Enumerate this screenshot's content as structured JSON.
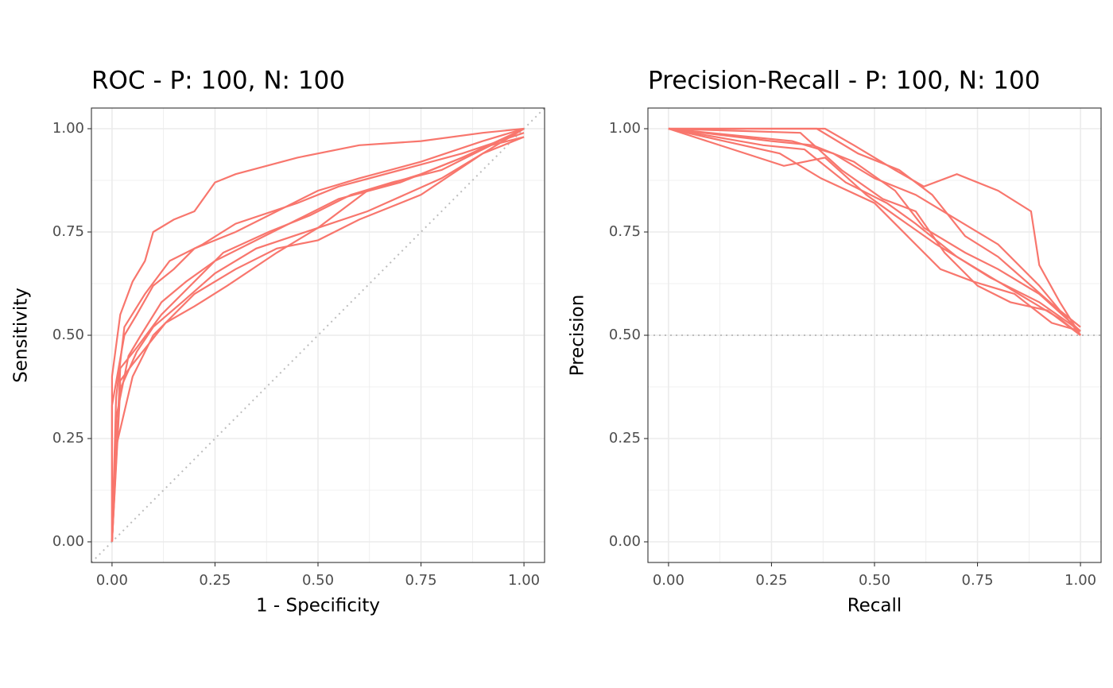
{
  "chart_data": [
    {
      "type": "line",
      "title": "ROC - P: 100, N: 100",
      "x_label": "1 - Specificity",
      "y_label": "Sensitivity",
      "xlim": [
        -0.05,
        1.05
      ],
      "ylim": [
        -0.05,
        1.05
      ],
      "xticks": [
        {
          "value": 0,
          "label": "0.00"
        },
        {
          "value": 0.25,
          "label": "0.25"
        },
        {
          "value": 0.5,
          "label": "0.50"
        },
        {
          "value": 0.75,
          "label": "0.75"
        },
        {
          "value": 1,
          "label": "1.00"
        }
      ],
      "yticks": [
        {
          "value": 0,
          "label": "0.00"
        },
        {
          "value": 0.25,
          "label": "0.25"
        },
        {
          "value": 0.5,
          "label": "0.50"
        },
        {
          "value": 0.75,
          "label": "0.75"
        },
        {
          "value": 1,
          "label": "1.00"
        }
      ],
      "grid": true,
      "minor_grid": true,
      "reference_line": {
        "slope": 1,
        "intercept": 0
      },
      "series": [
        {
          "color": "#f8766d",
          "x": [
            0,
            0,
            0.02,
            0.05,
            0.08,
            0.1,
            0.15,
            0.2,
            0.25,
            0.3,
            0.45,
            0.6,
            0.75,
            0.9,
            1
          ],
          "values": [
            0,
            0.4,
            0.55,
            0.63,
            0.68,
            0.75,
            0.78,
            0.8,
            0.87,
            0.89,
            0.93,
            0.96,
            0.97,
            0.99,
            1
          ]
        },
        {
          "color": "#f8766d",
          "x": [
            0,
            0,
            0.03,
            0.06,
            0.1,
            0.15,
            0.2,
            0.3,
            0.4,
            0.5,
            0.6,
            0.75,
            0.9,
            1
          ],
          "values": [
            0,
            0.33,
            0.5,
            0.55,
            0.62,
            0.66,
            0.71,
            0.75,
            0.8,
            0.85,
            0.88,
            0.92,
            0.97,
            1
          ]
        },
        {
          "color": "#f8766d",
          "x": [
            0,
            0.01,
            0.04,
            0.07,
            0.12,
            0.18,
            0.25,
            0.35,
            0.45,
            0.55,
            0.7,
            0.85,
            1
          ],
          "values": [
            0,
            0.3,
            0.45,
            0.5,
            0.58,
            0.63,
            0.68,
            0.73,
            0.78,
            0.83,
            0.87,
            0.93,
            1
          ]
        },
        {
          "color": "#f8766d",
          "x": [
            0,
            0.01,
            0.05,
            0.1,
            0.15,
            0.2,
            0.3,
            0.4,
            0.5,
            0.6,
            0.75,
            0.9,
            1
          ],
          "values": [
            0,
            0.23,
            0.4,
            0.5,
            0.55,
            0.6,
            0.66,
            0.71,
            0.73,
            0.78,
            0.84,
            0.94,
            0.98
          ]
        },
        {
          "color": "#f8766d",
          "x": [
            0,
            0.02,
            0.06,
            0.1,
            0.17,
            0.25,
            0.35,
            0.5,
            0.62,
            0.75,
            0.9,
            1
          ],
          "values": [
            0,
            0.37,
            0.46,
            0.52,
            0.58,
            0.65,
            0.71,
            0.76,
            0.85,
            0.89,
            0.95,
            1
          ]
        },
        {
          "color": "#f8766d",
          "x": [
            0,
            0.01,
            0.03,
            0.08,
            0.14,
            0.22,
            0.3,
            0.45,
            0.55,
            0.7,
            0.85,
            1
          ],
          "values": [
            0,
            0.35,
            0.52,
            0.6,
            0.68,
            0.72,
            0.77,
            0.82,
            0.86,
            0.9,
            0.94,
            0.99
          ]
        },
        {
          "color": "#f8766d",
          "x": [
            0,
            0.02,
            0.05,
            0.09,
            0.13,
            0.2,
            0.28,
            0.4,
            0.5,
            0.62,
            0.8,
            0.95,
            1
          ],
          "values": [
            0,
            0.39,
            0.43,
            0.48,
            0.53,
            0.57,
            0.62,
            0.7,
            0.76,
            0.8,
            0.88,
            0.97,
            1
          ]
        },
        {
          "color": "#f8766d",
          "x": [
            0,
            0.02,
            0.06,
            0.12,
            0.19,
            0.27,
            0.38,
            0.48,
            0.58,
            0.68,
            0.8,
            0.92,
            1
          ],
          "values": [
            0,
            0.42,
            0.47,
            0.55,
            0.62,
            0.7,
            0.75,
            0.79,
            0.84,
            0.87,
            0.9,
            0.96,
            0.98
          ]
        }
      ]
    },
    {
      "type": "line",
      "title": "Precision-Recall - P: 100, N: 100",
      "x_label": "Recall",
      "y_label": "Precision",
      "xlim": [
        -0.05,
        1.05
      ],
      "ylim": [
        -0.05,
        1.05
      ],
      "xticks": [
        {
          "value": 0,
          "label": "0.00"
        },
        {
          "value": 0.25,
          "label": "0.25"
        },
        {
          "value": 0.5,
          "label": "0.50"
        },
        {
          "value": 0.75,
          "label": "0.75"
        },
        {
          "value": 1,
          "label": "1.00"
        }
      ],
      "yticks": [
        {
          "value": 0,
          "label": "0.00"
        },
        {
          "value": 0.25,
          "label": "0.25"
        },
        {
          "value": 0.5,
          "label": "0.50"
        },
        {
          "value": 0.75,
          "label": "0.75"
        },
        {
          "value": 1,
          "label": "1.00"
        }
      ],
      "grid": true,
      "minor_grid": true,
      "reference_line": {
        "slope": 0,
        "intercept": 0.5
      },
      "series": [
        {
          "color": "#f8766d",
          "x": [
            0,
            0.38,
            0.45,
            0.55,
            0.62,
            0.7,
            0.8,
            0.88,
            0.9,
            0.95,
            1
          ],
          "values": [
            1,
            1,
            0.96,
            0.9,
            0.86,
            0.89,
            0.85,
            0.8,
            0.67,
            0.58,
            0.5
          ]
        },
        {
          "color": "#f8766d",
          "x": [
            0,
            0.3,
            0.4,
            0.5,
            0.6,
            0.7,
            0.8,
            0.9,
            0.95,
            1
          ],
          "values": [
            1,
            0.97,
            0.94,
            0.88,
            0.84,
            0.78,
            0.72,
            0.62,
            0.56,
            0.52
          ]
        },
        {
          "color": "#f8766d",
          "x": [
            0,
            0.25,
            0.35,
            0.45,
            0.55,
            0.62,
            0.72,
            0.8,
            0.9,
            1
          ],
          "values": [
            1,
            0.97,
            0.96,
            0.92,
            0.85,
            0.76,
            0.7,
            0.66,
            0.6,
            0.51
          ]
        },
        {
          "color": "#f8766d",
          "x": [
            0,
            0.28,
            0.38,
            0.48,
            0.55,
            0.65,
            0.75,
            0.85,
            0.95,
            1
          ],
          "values": [
            1,
            0.91,
            0.93,
            0.84,
            0.79,
            0.72,
            0.66,
            0.6,
            0.54,
            0.5
          ]
        },
        {
          "color": "#f8766d",
          "x": [
            0,
            0.23,
            0.33,
            0.43,
            0.53,
            0.6,
            0.7,
            0.78,
            0.9,
            1
          ],
          "values": [
            1,
            0.96,
            0.95,
            0.87,
            0.82,
            0.77,
            0.69,
            0.64,
            0.58,
            0.51
          ]
        },
        {
          "color": "#f8766d",
          "x": [
            0,
            0.32,
            0.42,
            0.52,
            0.6,
            0.67,
            0.75,
            0.83,
            0.92,
            1
          ],
          "values": [
            1,
            0.99,
            0.9,
            0.83,
            0.8,
            0.7,
            0.62,
            0.58,
            0.56,
            0.5
          ]
        },
        {
          "color": "#f8766d",
          "x": [
            0,
            0.36,
            0.46,
            0.56,
            0.64,
            0.72,
            0.8,
            0.88,
            0.96,
            1
          ],
          "values": [
            1,
            1,
            0.94,
            0.9,
            0.84,
            0.74,
            0.69,
            0.62,
            0.55,
            0.5
          ]
        },
        {
          "color": "#f8766d",
          "x": [
            0,
            0.27,
            0.37,
            0.5,
            0.58,
            0.66,
            0.74,
            0.84,
            0.93,
            1
          ],
          "values": [
            1,
            0.94,
            0.88,
            0.82,
            0.74,
            0.66,
            0.63,
            0.6,
            0.53,
            0.51
          ]
        }
      ]
    }
  ]
}
